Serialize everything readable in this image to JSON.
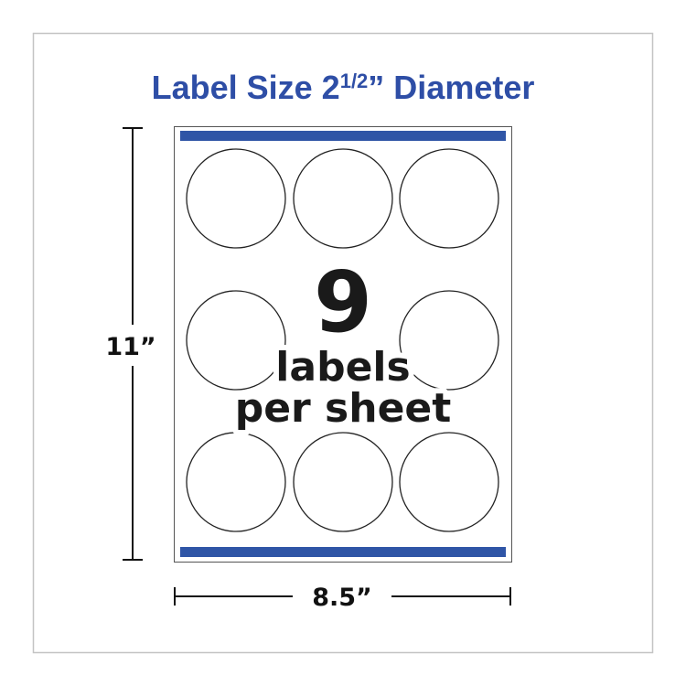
{
  "title": {
    "main": "Label Size 2",
    "fraction": "1/2",
    "suffix": "” Diameter"
  },
  "count": "9",
  "count_line1": "labels",
  "count_line2": "per sheet",
  "height_label": "11”",
  "width_label": "8.5”",
  "colors": {
    "brand_blue": "#2e4ea6",
    "bar_blue": "#2f55a6",
    "border": "#bdbdbd",
    "ink": "#1a1a1a"
  }
}
